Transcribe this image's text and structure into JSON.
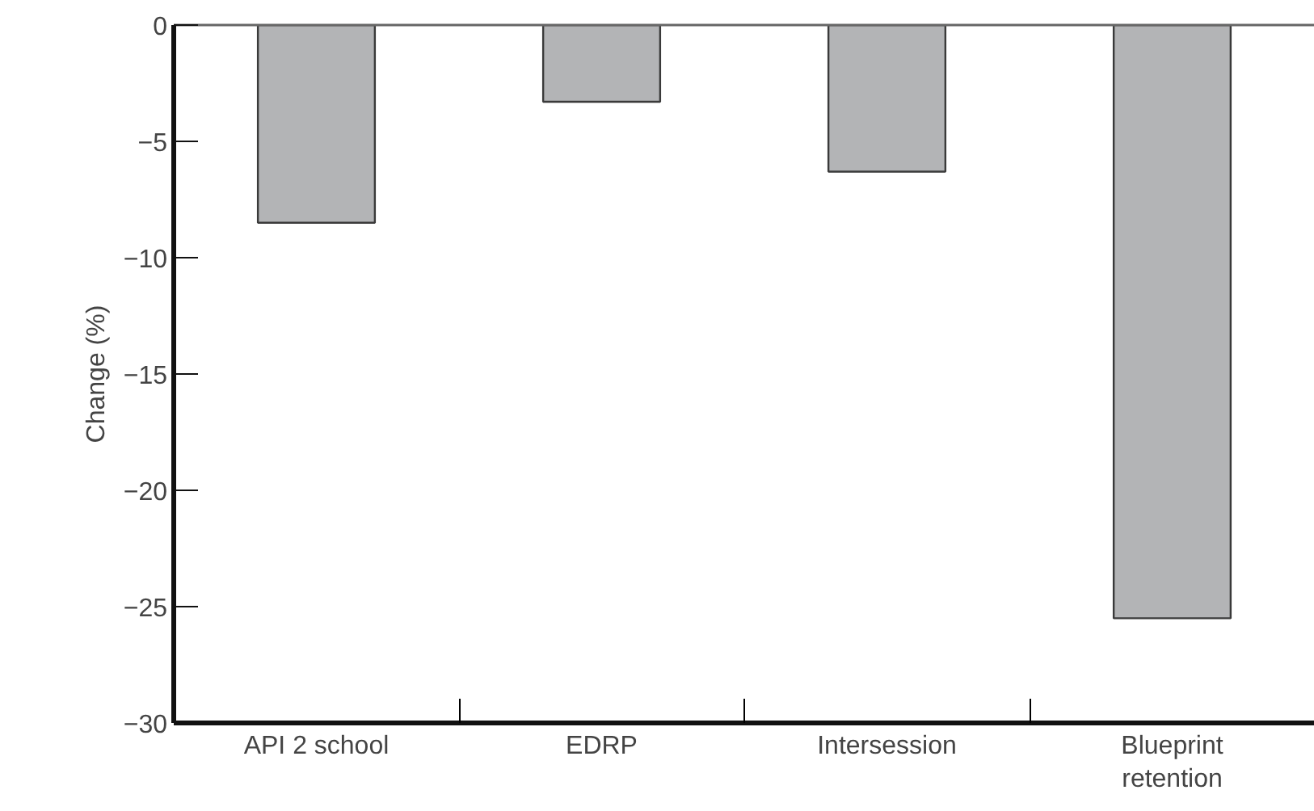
{
  "chart_data": {
    "type": "bar",
    "ylabel": "Change (%)",
    "categories": [
      "API 2 school",
      "EDRP",
      "Intersession",
      "Blueprint\nretention"
    ],
    "values": [
      -8.5,
      -3.3,
      -6.3,
      -25.5
    ],
    "color": "#b3b4b6",
    "ylim": [
      -30,
      0
    ],
    "yticks": [
      0,
      -5,
      -10,
      -15,
      -20,
      -25,
      -30
    ],
    "grid": false
  }
}
